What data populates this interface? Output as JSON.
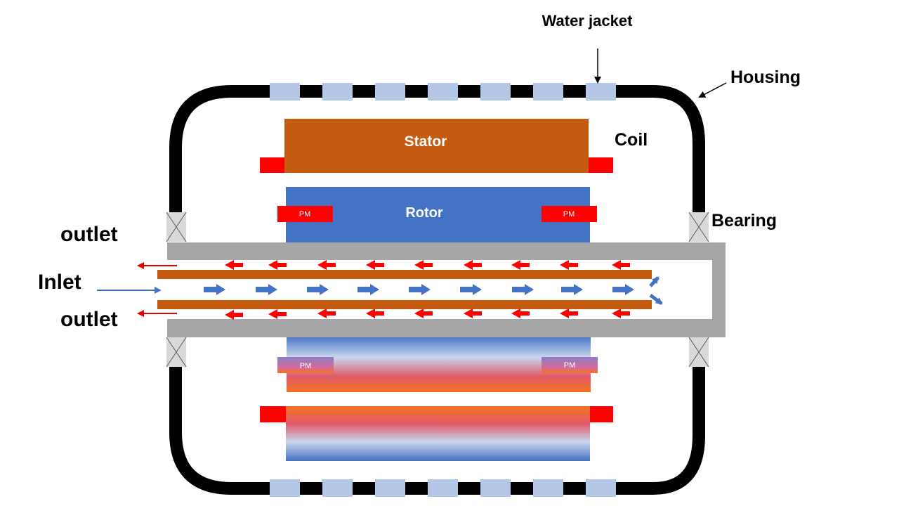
{
  "labels": {
    "water_jacket": "Water jacket",
    "housing": "Housing",
    "stator": "Stator",
    "coil": "Coil",
    "rotor": "Rotor",
    "bearing": "Bearing",
    "outlet_top": "outlet",
    "inlet": "Inlet",
    "outlet_bottom": "outlet",
    "pm": "PM"
  },
  "colors": {
    "housing": "#000000",
    "water_jacket": "#b4c7e7",
    "stator": "#c55a11",
    "rotor": "#4472c4",
    "coil": "#ff0000",
    "shaft": "#a6a6a6",
    "inner_tube": "#c55a11",
    "inlet_flow": "#4472c4",
    "outlet_flow": "#ff0000",
    "hot": "#f4741f",
    "mid": "#e05a6a",
    "cool": "#c9d6ee"
  }
}
